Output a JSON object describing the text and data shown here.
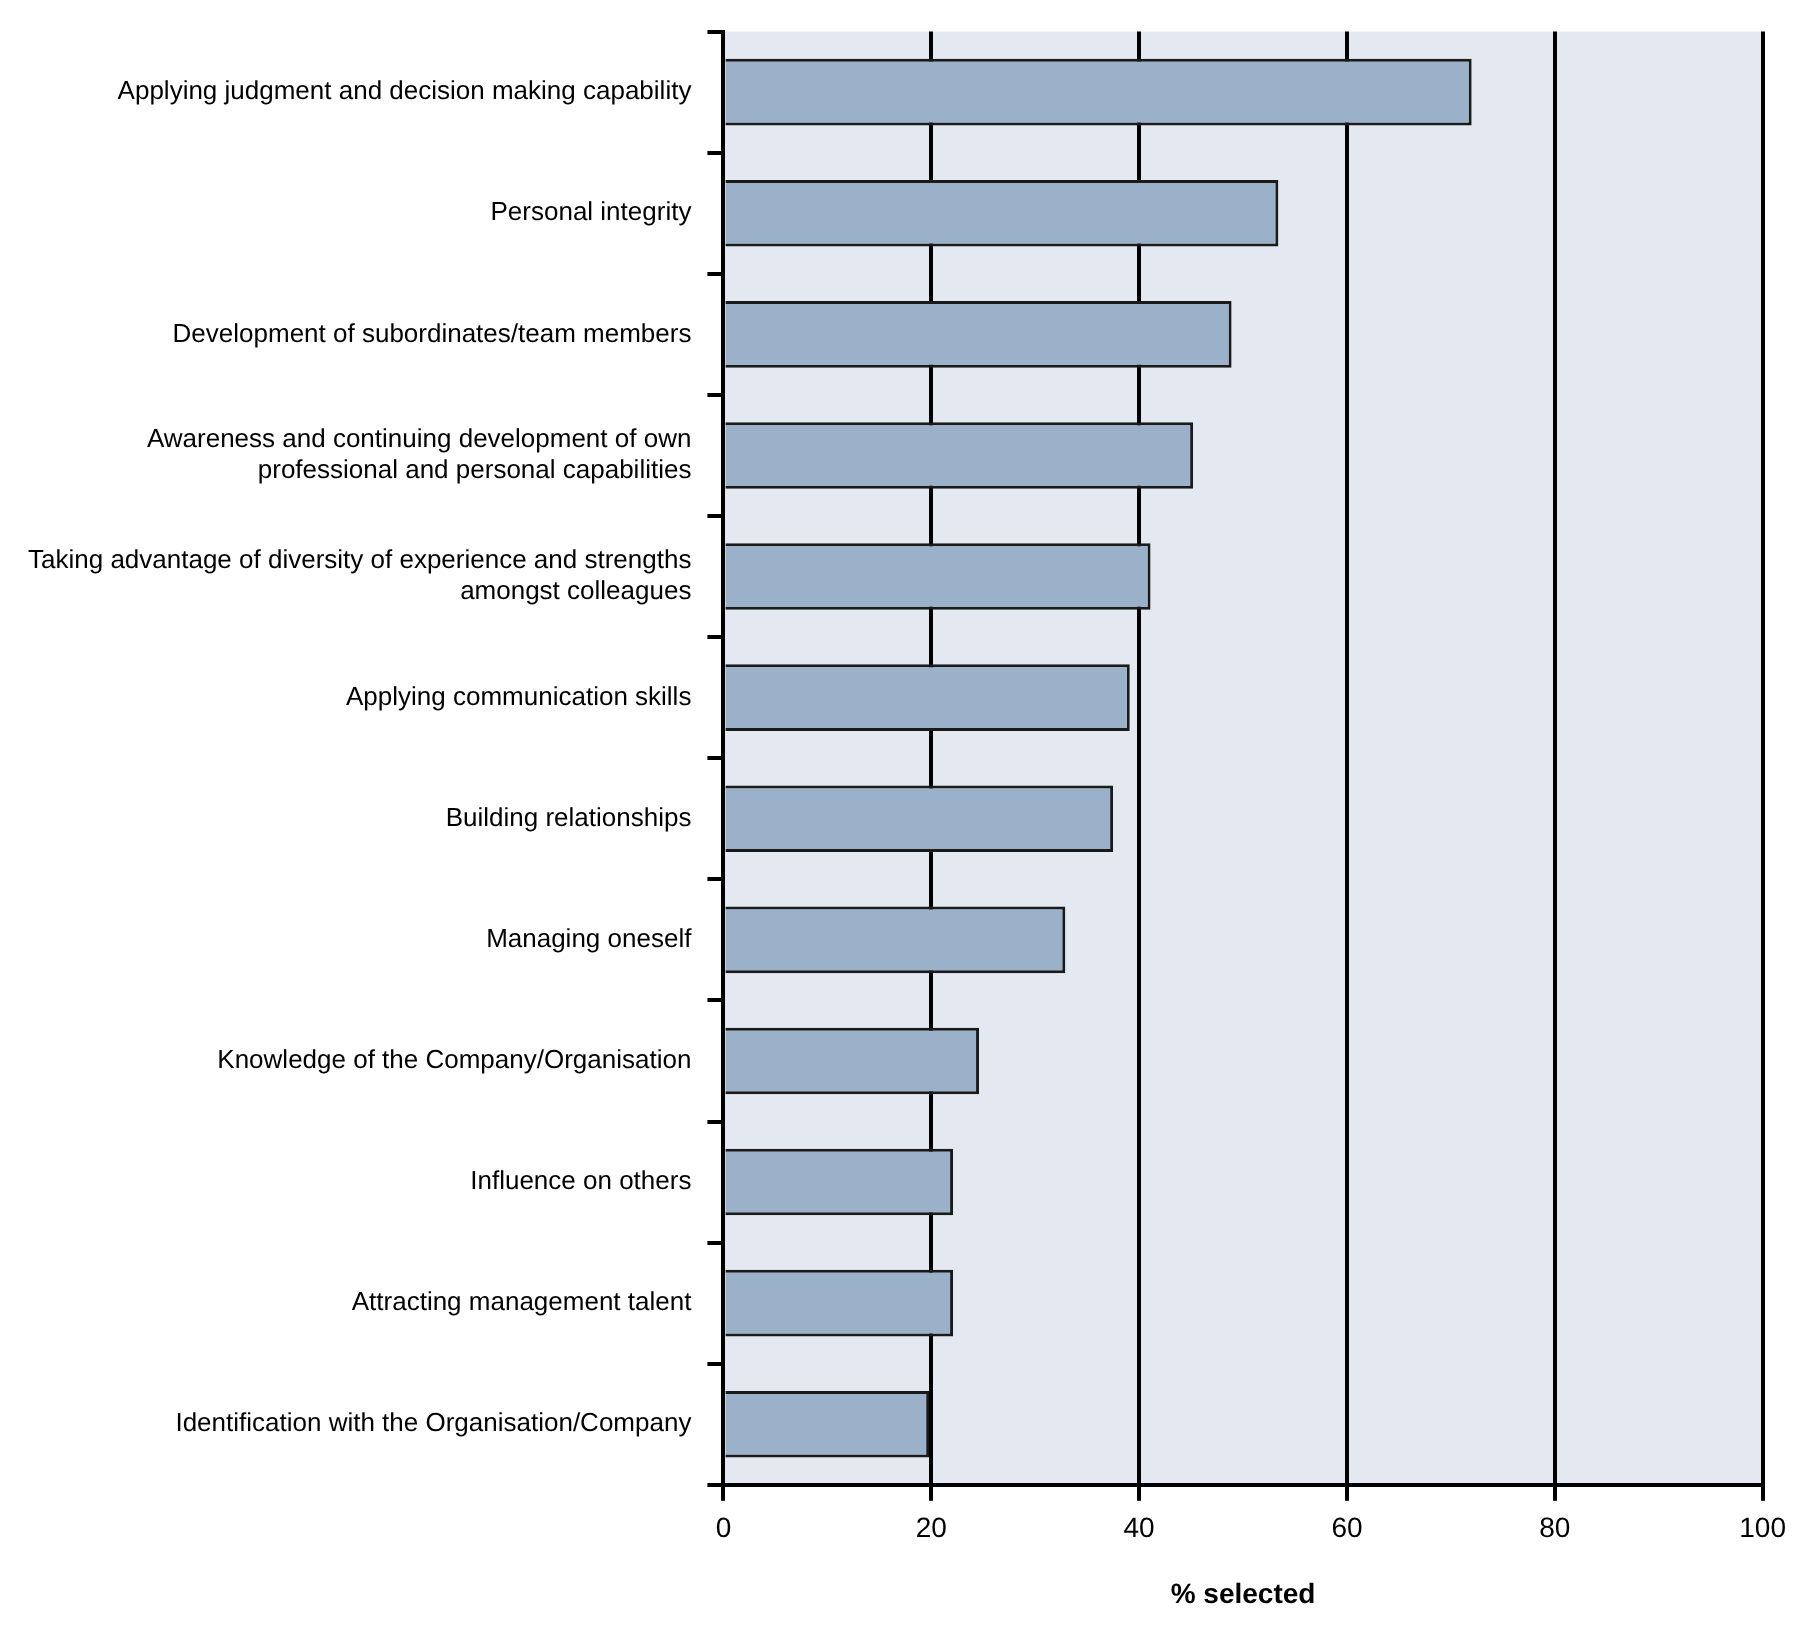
{
  "chart_data": {
    "type": "bar",
    "orientation": "horizontal",
    "xlabel": "% selected",
    "categories": [
      "Applying judgment and decision making capability",
      "Personal integrity",
      "Development of subordinates/team members",
      "Awareness and continuing development of own professional and personal capabilities",
      "Taking advantage of diversity of experience and strengths amongst colleagues",
      "Applying communication skills",
      "Building relationships",
      "Managing oneself",
      "Knowledge of the Company/Organisation",
      "Influence on others",
      "Attracting management talent",
      "Identification with the Organisation/Company"
    ],
    "values": [
      72,
      53.4,
      48.9,
      45.2,
      41.1,
      39.1,
      37.5,
      32.9,
      24.6,
      22.1,
      22.1,
      19.8
    ],
    "color": "#9bb1c9",
    "xlim": [
      0,
      100
    ],
    "xticks": [
      0,
      20,
      40,
      60,
      80,
      100
    ],
    "grid": "x",
    "legend": false
  }
}
